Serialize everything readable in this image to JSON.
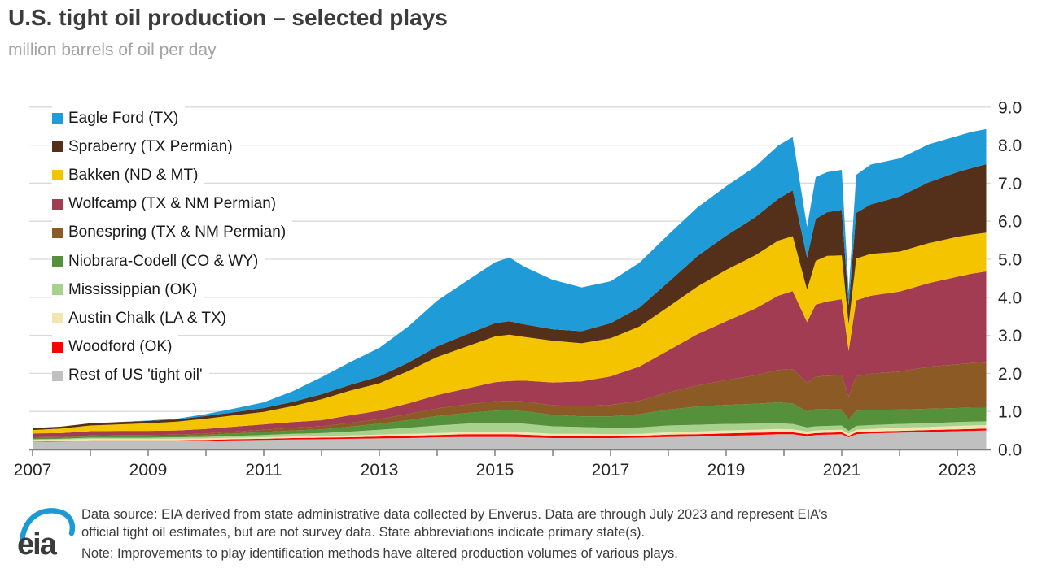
{
  "header": {
    "title": "U.S. tight oil production – selected plays",
    "subtitle": "million barrels of oil per day"
  },
  "chart_data": {
    "type": "area",
    "stacked": true,
    "title": "U.S. tight oil production – selected plays",
    "ylabel": "million barrels of oil per day",
    "xlabel": "",
    "ylim": [
      0,
      9
    ],
    "ytick_step": 1,
    "ytick_labels": [
      "0.0",
      "1.0",
      "2.0",
      "3.0",
      "4.0",
      "5.0",
      "6.0",
      "7.0",
      "8.0",
      "9.0"
    ],
    "y_axis_side": "right",
    "x_range": [
      2007,
      2023.58
    ],
    "xticks_labeled": [
      2007,
      2009,
      2011,
      2013,
      2015,
      2017,
      2019,
      2021,
      2023
    ],
    "xticks_minor_every_years": 1,
    "grid": "horizontal",
    "legend_position": "top-left-overlay",
    "stack_note": "series listed top-of-stack first (legend order); bottom of stack is last",
    "x": [
      2007,
      2007.5,
      2008,
      2008.5,
      2009,
      2009.5,
      2010,
      2010.5,
      2011,
      2011.5,
      2012,
      2012.5,
      2013,
      2013.5,
      2014,
      2014.5,
      2015,
      2015.25,
      2015.5,
      2016,
      2016.5,
      2017,
      2017.5,
      2018,
      2018.5,
      2019,
      2019.5,
      2019.9,
      2020.15,
      2020.4,
      2020.55,
      2020.75,
      2021,
      2021.12,
      2021.25,
      2021.5,
      2022,
      2022.5,
      2023,
      2023.25,
      2023.5
    ],
    "series": [
      {
        "name": "Eagle Ford (TX)",
        "color": "#1F9BD7",
        "values": [
          0,
          0,
          0,
          0,
          0.01,
          0.02,
          0.05,
          0.1,
          0.15,
          0.28,
          0.45,
          0.6,
          0.75,
          0.95,
          1.2,
          1.4,
          1.6,
          1.68,
          1.52,
          1.3,
          1.15,
          1.1,
          1.18,
          1.25,
          1.28,
          1.3,
          1.33,
          1.4,
          1.4,
          0.8,
          1.1,
          1.05,
          1.05,
          0.35,
          1.0,
          1.05,
          1.0,
          1.0,
          0.95,
          0.95,
          0.92
        ]
      },
      {
        "name": "Spraberry (TX Permian)",
        "color": "#54301A",
        "values": [
          0.05,
          0.05,
          0.06,
          0.06,
          0.06,
          0.06,
          0.07,
          0.08,
          0.1,
          0.11,
          0.13,
          0.15,
          0.18,
          0.22,
          0.28,
          0.32,
          0.35,
          0.35,
          0.33,
          0.3,
          0.32,
          0.4,
          0.5,
          0.65,
          0.8,
          0.9,
          1.0,
          1.1,
          1.2,
          0.85,
          1.1,
          1.15,
          1.2,
          0.5,
          1.2,
          1.3,
          1.45,
          1.6,
          1.7,
          1.75,
          1.8
        ]
      },
      {
        "name": "Bakken (ND & MT)",
        "color": "#F5C400",
        "values": [
          0.09,
          0.12,
          0.15,
          0.17,
          0.2,
          0.23,
          0.27,
          0.3,
          0.33,
          0.42,
          0.55,
          0.65,
          0.72,
          0.85,
          1.0,
          1.1,
          1.2,
          1.22,
          1.15,
          1.1,
          1.0,
          1.0,
          1.05,
          1.15,
          1.25,
          1.35,
          1.4,
          1.45,
          1.45,
          0.85,
          1.15,
          1.2,
          1.15,
          0.7,
          1.1,
          1.1,
          1.05,
          1.05,
          1.05,
          1.03,
          1.02
        ]
      },
      {
        "name": "Wolfcamp (TX & NM Permian)",
        "color": "#A23C52",
        "values": [
          0.1,
          0.1,
          0.11,
          0.11,
          0.11,
          0.11,
          0.12,
          0.13,
          0.14,
          0.15,
          0.16,
          0.2,
          0.22,
          0.28,
          0.35,
          0.42,
          0.5,
          0.52,
          0.55,
          0.6,
          0.65,
          0.75,
          0.9,
          1.1,
          1.35,
          1.55,
          1.75,
          1.95,
          2.05,
          1.6,
          1.9,
          1.95,
          2.0,
          1.2,
          2.0,
          2.05,
          2.1,
          2.2,
          2.3,
          2.35,
          2.4
        ]
      },
      {
        "name": "Bonespring (TX & NM Permian)",
        "color": "#8B5A25",
        "values": [
          0.02,
          0.02,
          0.02,
          0.03,
          0.03,
          0.03,
          0.04,
          0.05,
          0.06,
          0.07,
          0.08,
          0.1,
          0.12,
          0.16,
          0.2,
          0.22,
          0.25,
          0.25,
          0.25,
          0.25,
          0.27,
          0.3,
          0.35,
          0.45,
          0.55,
          0.65,
          0.75,
          0.85,
          0.9,
          0.75,
          0.85,
          0.88,
          0.9,
          0.6,
          0.9,
          0.95,
          1.0,
          1.1,
          1.15,
          1.17,
          1.18
        ]
      },
      {
        "name": "Niobrara-Codell (CO & WY)",
        "color": "#55903A",
        "values": [
          0.03,
          0.03,
          0.04,
          0.04,
          0.04,
          0.04,
          0.05,
          0.06,
          0.08,
          0.09,
          0.1,
          0.13,
          0.16,
          0.2,
          0.25,
          0.28,
          0.32,
          0.33,
          0.33,
          0.3,
          0.28,
          0.3,
          0.35,
          0.42,
          0.48,
          0.5,
          0.52,
          0.55,
          0.54,
          0.42,
          0.45,
          0.44,
          0.42,
          0.3,
          0.4,
          0.4,
          0.38,
          0.38,
          0.37,
          0.37,
          0.36
        ]
      },
      {
        "name": "Mississippian (OK)",
        "color": "#A9D18E",
        "values": [
          0.02,
          0.02,
          0.03,
          0.03,
          0.03,
          0.04,
          0.04,
          0.05,
          0.06,
          0.07,
          0.08,
          0.1,
          0.13,
          0.16,
          0.2,
          0.22,
          0.24,
          0.24,
          0.23,
          0.2,
          0.18,
          0.17,
          0.17,
          0.18,
          0.18,
          0.17,
          0.16,
          0.15,
          0.14,
          0.11,
          0.11,
          0.11,
          0.11,
          0.08,
          0.1,
          0.1,
          0.1,
          0.1,
          0.1,
          0.1,
          0.1
        ]
      },
      {
        "name": "Austin Chalk (LA & TX)",
        "color": "#F0E6B2",
        "values": [
          0.04,
          0.04,
          0.04,
          0.04,
          0.04,
          0.04,
          0.04,
          0.04,
          0.04,
          0.04,
          0.04,
          0.05,
          0.05,
          0.05,
          0.05,
          0.06,
          0.06,
          0.06,
          0.06,
          0.05,
          0.05,
          0.05,
          0.05,
          0.06,
          0.07,
          0.08,
          0.08,
          0.09,
          0.08,
          0.07,
          0.07,
          0.07,
          0.07,
          0.05,
          0.07,
          0.07,
          0.08,
          0.08,
          0.09,
          0.09,
          0.09
        ]
      },
      {
        "name": "Woodford (OK)",
        "color": "#FF0000",
        "values": [
          0.01,
          0.01,
          0.02,
          0.02,
          0.02,
          0.02,
          0.02,
          0.03,
          0.03,
          0.04,
          0.04,
          0.04,
          0.05,
          0.06,
          0.06,
          0.07,
          0.07,
          0.07,
          0.07,
          0.06,
          0.06,
          0.05,
          0.05,
          0.06,
          0.06,
          0.06,
          0.06,
          0.05,
          0.05,
          0.05,
          0.05,
          0.05,
          0.05,
          0.04,
          0.05,
          0.05,
          0.05,
          0.05,
          0.05,
          0.05,
          0.05
        ]
      },
      {
        "name": "Rest of US 'tight oil'",
        "color": "#C0C0C0",
        "values": [
          0.2,
          0.21,
          0.22,
          0.22,
          0.22,
          0.22,
          0.23,
          0.24,
          0.25,
          0.26,
          0.27,
          0.28,
          0.29,
          0.3,
          0.32,
          0.33,
          0.33,
          0.33,
          0.32,
          0.3,
          0.3,
          0.3,
          0.31,
          0.33,
          0.34,
          0.36,
          0.38,
          0.4,
          0.4,
          0.35,
          0.38,
          0.39,
          0.4,
          0.32,
          0.4,
          0.42,
          0.44,
          0.46,
          0.48,
          0.49,
          0.5
        ]
      }
    ],
    "colors": {
      "grid": "#D9D9D9",
      "axis": "#7F7F7F",
      "tick_label": "#262626",
      "accent_blue": "#1C9AD6"
    }
  },
  "footer": {
    "logo_text": "eia",
    "source_line1": "Data source: EIA derived from state administrative data collected by Enverus. Data are through July 2023 and represent EIA’s",
    "source_line2": "official tight oil estimates, but are not survey data. State abbreviations indicate primary state(s).",
    "note": "Note: Improvements to play identification methods have altered production volumes of various plays."
  }
}
